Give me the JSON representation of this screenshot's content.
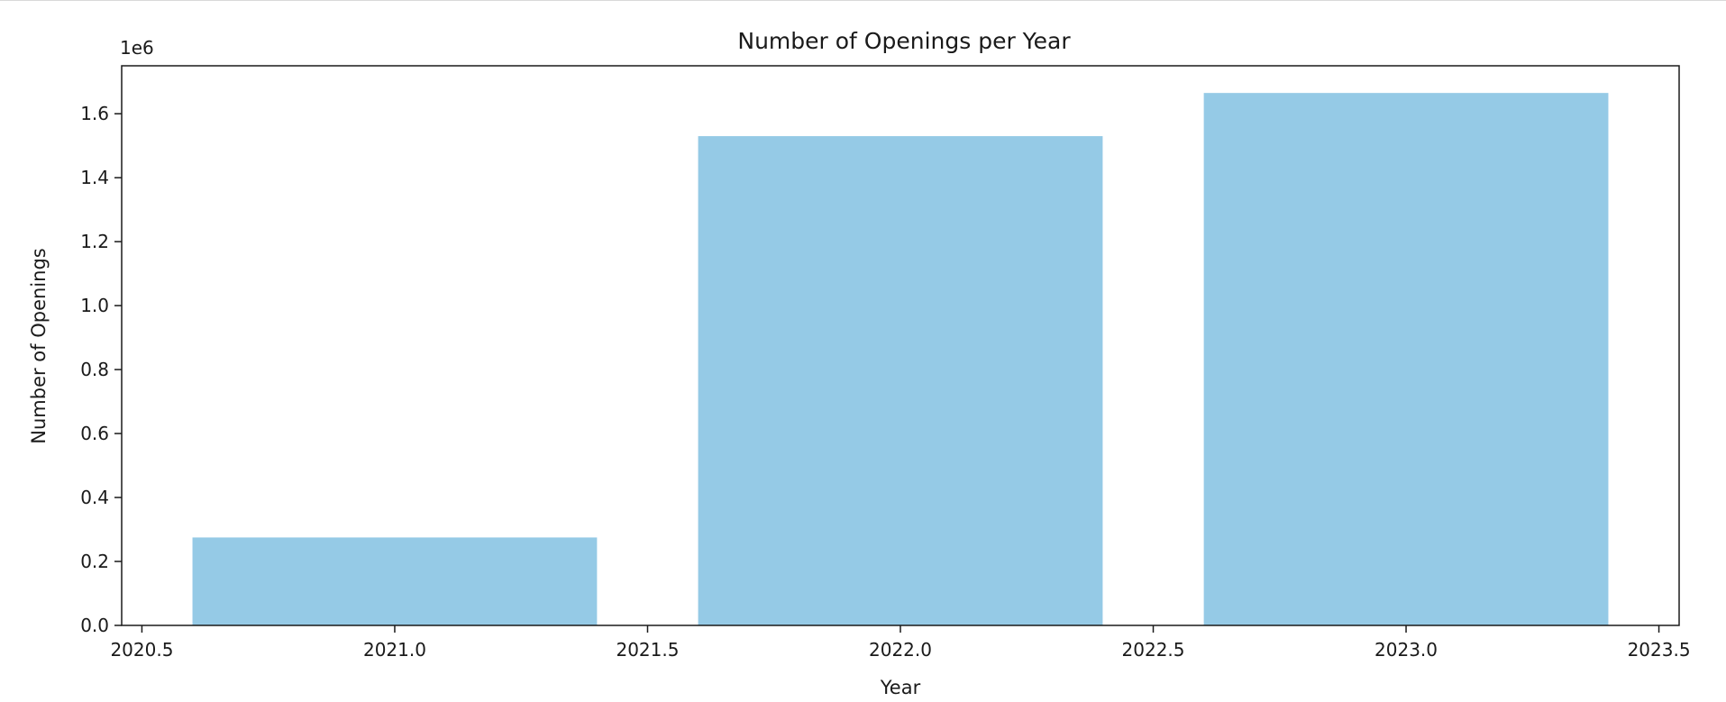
{
  "chart_data": {
    "type": "bar",
    "title": "Number of Openings per Year",
    "xlabel": "Year",
    "ylabel": "Number of Openings",
    "y_offset_label": "1e6",
    "x": [
      2021,
      2022,
      2023
    ],
    "values": [
      275000,
      1530000,
      1665000
    ],
    "bar_width": 0.8,
    "xlim": [
      2020.46,
      2023.54
    ],
    "ylim": [
      0,
      1750000
    ],
    "x_ticks": [
      2020.5,
      2021.0,
      2021.5,
      2022.0,
      2022.5,
      2023.0,
      2023.5
    ],
    "x_tick_labels": [
      "2020.5",
      "2021.0",
      "2021.5",
      "2022.0",
      "2022.5",
      "2023.0",
      "2023.5"
    ],
    "y_ticks": [
      0,
      200000,
      400000,
      600000,
      800000,
      1000000,
      1200000,
      1400000,
      1600000
    ],
    "y_tick_labels": [
      "0.0",
      "0.2",
      "0.4",
      "0.6",
      "0.8",
      "1.0",
      "1.2",
      "1.4",
      "1.6"
    ],
    "grid": false,
    "legend": "none",
    "bar_color": "#95CAE6",
    "axis_color": "#1a1a1a"
  }
}
